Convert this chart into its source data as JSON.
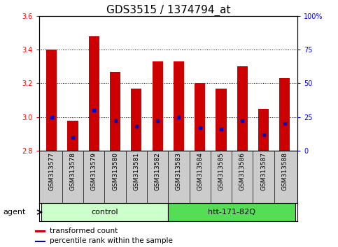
{
  "title": "GDS3515 / 1374794_at",
  "samples": [
    "GSM313577",
    "GSM313578",
    "GSM313579",
    "GSM313580",
    "GSM313581",
    "GSM313582",
    "GSM313583",
    "GSM313584",
    "GSM313585",
    "GSM313586",
    "GSM313587",
    "GSM313588"
  ],
  "bar_values": [
    3.4,
    2.98,
    3.48,
    3.27,
    3.17,
    3.33,
    3.33,
    3.2,
    3.17,
    3.3,
    3.05,
    3.23
  ],
  "percentile_values": [
    25,
    10,
    30,
    22,
    18,
    22,
    25,
    17,
    16,
    22,
    12,
    20
  ],
  "bar_color": "#cc0000",
  "percentile_color": "#0000cc",
  "ymin": 2.8,
  "ymax": 3.6,
  "yticks": [
    2.8,
    3.0,
    3.2,
    3.4,
    3.6
  ],
  "right_yticks": [
    0,
    25,
    50,
    75,
    100
  ],
  "right_ytick_labels": [
    "0",
    "25",
    "50",
    "75",
    "100%"
  ],
  "groups": [
    {
      "label": "control",
      "start": 0,
      "end": 6,
      "color": "#ccffcc"
    },
    {
      "label": "htt-171-82Q",
      "start": 6,
      "end": 12,
      "color": "#55dd55"
    }
  ],
  "agent_label": "agent",
  "legend": [
    {
      "label": "transformed count",
      "color": "#cc0000"
    },
    {
      "label": "percentile rank within the sample",
      "color": "#0000cc"
    }
  ],
  "bar_width": 0.5,
  "title_fontsize": 11,
  "tick_fontsize": 7,
  "label_fontsize": 8,
  "sample_label_fontsize": 6.5
}
